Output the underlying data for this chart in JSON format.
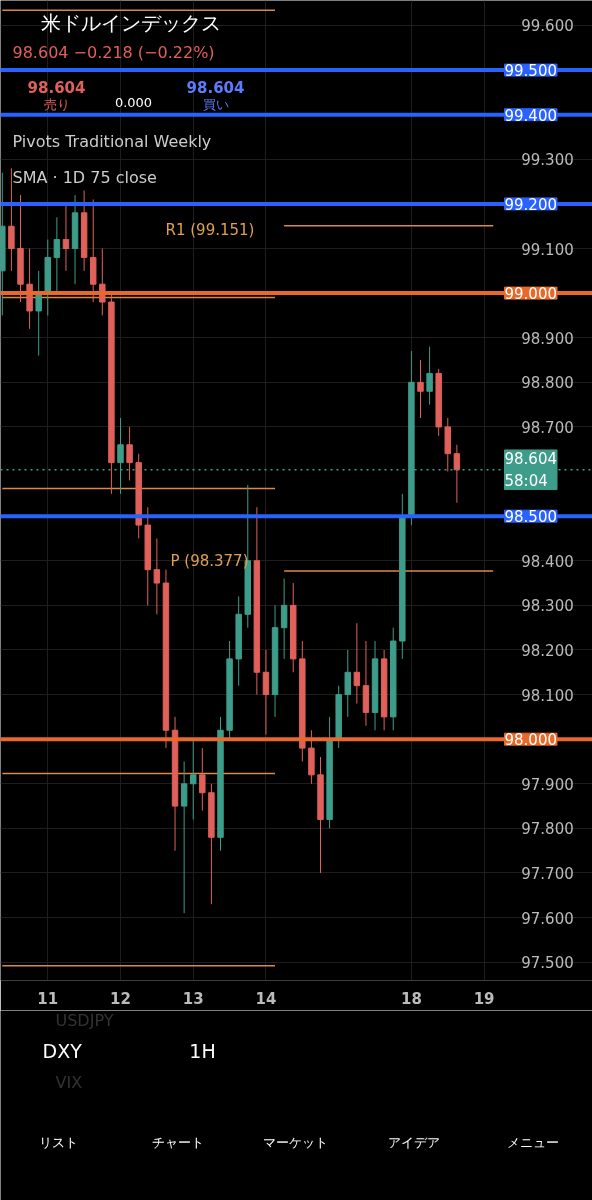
{
  "chart_data": {
    "type": "candlestick",
    "title": "米ドルインデックス",
    "subtitle": "98.604 −0.218 (−0.22%)",
    "categories": [
      null,
      null,
      null,
      null,
      null,
      "11",
      null,
      null,
      null,
      null,
      null,
      null,
      null,
      "12",
      null,
      null,
      null,
      null,
      null,
      null,
      null,
      "13",
      null,
      null,
      null,
      null,
      null,
      null,
      null,
      "14",
      null,
      null,
      null,
      null,
      null,
      null,
      null,
      null,
      null,
      null,
      null,
      null,
      null,
      null,
      null,
      "18",
      null,
      null,
      null,
      null,
      null,
      null,
      null,
      "19",
      null
    ],
    "ohlc": [
      [
        99.05,
        99.27,
        98.95,
        99.15
      ],
      [
        99.15,
        99.28,
        99.05,
        99.1
      ],
      [
        99.1,
        99.22,
        98.98,
        99.02
      ],
      [
        99.02,
        99.1,
        98.92,
        98.96
      ],
      [
        98.96,
        99.05,
        98.86,
        99.0
      ],
      [
        99.0,
        99.12,
        98.95,
        99.08
      ],
      [
        99.08,
        99.17,
        99.0,
        99.12
      ],
      [
        99.12,
        99.2,
        99.05,
        99.1
      ],
      [
        99.1,
        99.22,
        99.02,
        99.18
      ],
      [
        99.18,
        99.23,
        99.05,
        99.08
      ],
      [
        99.08,
        99.21,
        98.98,
        99.02
      ],
      [
        99.02,
        99.1,
        98.95,
        98.98
      ],
      [
        98.98,
        99.0,
        98.55,
        98.62
      ],
      [
        98.62,
        98.72,
        98.55,
        98.66
      ],
      [
        98.66,
        98.7,
        98.58,
        98.62
      ],
      [
        98.62,
        98.64,
        98.45,
        98.48
      ],
      [
        98.48,
        98.52,
        98.3,
        98.38
      ],
      [
        98.38,
        98.45,
        98.28,
        98.35
      ],
      [
        98.35,
        98.38,
        97.98,
        98.02
      ],
      [
        98.02,
        98.05,
        97.75,
        97.85
      ],
      [
        97.85,
        97.95,
        97.61,
        97.9
      ],
      [
        97.9,
        98.0,
        97.82,
        97.92
      ],
      [
        97.92,
        97.98,
        97.84,
        97.88
      ],
      [
        97.88,
        97.9,
        97.63,
        97.78
      ],
      [
        97.78,
        98.05,
        97.75,
        98.02
      ],
      [
        98.02,
        98.22,
        98.0,
        98.18
      ],
      [
        98.18,
        98.32,
        98.12,
        98.28
      ],
      [
        98.28,
        98.57,
        98.25,
        98.4
      ],
      [
        98.4,
        98.52,
        98.1,
        98.15
      ],
      [
        98.15,
        98.2,
        98.01,
        98.1
      ],
      [
        98.1,
        98.3,
        98.05,
        98.25
      ],
      [
        98.25,
        98.36,
        98.18,
        98.3
      ],
      [
        98.3,
        98.35,
        98.15,
        98.18
      ],
      [
        98.18,
        98.22,
        97.95,
        97.98
      ],
      [
        97.98,
        98.02,
        97.9,
        97.92
      ],
      [
        97.92,
        97.96,
        97.7,
        97.82
      ],
      [
        97.82,
        98.05,
        97.8,
        98.0
      ],
      [
        98.0,
        98.12,
        97.98,
        98.1
      ],
      [
        98.1,
        98.2,
        98.05,
        98.15
      ],
      [
        98.15,
        98.26,
        98.08,
        98.12
      ],
      [
        98.12,
        98.22,
        98.03,
        98.06
      ],
      [
        98.06,
        98.22,
        98.02,
        98.18
      ],
      [
        98.18,
        98.2,
        98.02,
        98.05
      ],
      [
        98.05,
        98.25,
        98.02,
        98.22
      ],
      [
        98.22,
        98.55,
        98.18,
        98.5
      ],
      [
        98.5,
        98.87,
        98.48,
        98.8
      ],
      [
        98.8,
        98.85,
        98.72,
        98.78
      ],
      [
        98.78,
        98.88,
        98.75,
        98.82
      ],
      [
        98.82,
        98.83,
        98.68,
        98.7
      ],
      [
        98.7,
        98.72,
        98.6,
        98.64
      ],
      [
        98.64,
        98.66,
        98.53,
        98.604
      ],
      null,
      null,
      null,
      null
    ],
    "series": [
      {
        "type": "line",
        "color": "#d9894a",
        "values": [
          99.634,
          99.634,
          99.634,
          99.634,
          99.634,
          99.634,
          99.634,
          99.634,
          99.634,
          99.634,
          99.634,
          99.634,
          99.634,
          99.634,
          99.634,
          99.634,
          99.634,
          99.634,
          99.634,
          99.634,
          99.634,
          99.634,
          99.634,
          99.634,
          99.634,
          99.634,
          99.634,
          99.634,
          99.634,
          99.634,
          99.634,
          null,
          null,
          null,
          null,
          null,
          null,
          null,
          null,
          null,
          null,
          null,
          null,
          null,
          null,
          null,
          null,
          null,
          null,
          null,
          null,
          null,
          null,
          null,
          null
        ]
      },
      {
        "type": "line",
        "color": "#d9894a",
        "values": [
          98.99,
          98.99,
          98.99,
          98.99,
          98.99,
          98.99,
          98.99,
          98.99,
          98.99,
          98.99,
          98.99,
          98.99,
          98.99,
          98.99,
          98.99,
          98.99,
          98.99,
          98.99,
          98.99,
          98.99,
          98.99,
          98.99,
          98.99,
          98.99,
          98.99,
          98.99,
          98.99,
          98.99,
          98.99,
          98.99,
          98.99,
          null,
          null,
          null,
          null,
          null,
          null,
          null,
          null,
          null,
          null,
          null,
          null,
          null,
          null,
          null,
          null,
          null,
          null,
          null,
          null,
          null,
          null,
          null,
          null
        ]
      },
      {
        "type": "line",
        "color": "#d9894a",
        "values": [
          98.562,
          98.562,
          98.562,
          98.562,
          98.562,
          98.562,
          98.562,
          98.562,
          98.562,
          98.562,
          98.562,
          98.562,
          98.562,
          98.562,
          98.562,
          98.562,
          98.562,
          98.562,
          98.562,
          98.562,
          98.562,
          98.562,
          98.562,
          98.562,
          98.562,
          98.562,
          98.562,
          98.562,
          98.562,
          98.562,
          98.562,
          null,
          null,
          null,
          null,
          null,
          null,
          null,
          null,
          null,
          null,
          null,
          null,
          null,
          null,
          null,
          null,
          null,
          null,
          null,
          null,
          null,
          null,
          null,
          null
        ]
      },
      {
        "type": "line",
        "color": "#d9894a",
        "values": [
          97.923,
          97.923,
          97.923,
          97.923,
          97.923,
          97.923,
          97.923,
          97.923,
          97.923,
          97.923,
          97.923,
          97.923,
          97.923,
          97.923,
          97.923,
          97.923,
          97.923,
          97.923,
          97.923,
          97.923,
          97.923,
          97.923,
          97.923,
          97.923,
          97.923,
          97.923,
          97.923,
          97.923,
          97.923,
          97.923,
          97.923,
          null,
          null,
          null,
          null,
          null,
          null,
          null,
          null,
          null,
          null,
          null,
          null,
          null,
          null,
          null,
          null,
          null,
          null,
          null,
          null,
          null,
          null,
          null,
          null
        ]
      },
      {
        "type": "line",
        "color": "#d9894a",
        "values": [
          97.492,
          97.492,
          97.492,
          97.492,
          97.492,
          97.492,
          97.492,
          97.492,
          97.492,
          97.492,
          97.492,
          97.492,
          97.492,
          97.492,
          97.492,
          97.492,
          97.492,
          97.492,
          97.492,
          97.492,
          97.492,
          97.492,
          97.492,
          97.492,
          97.492,
          97.492,
          97.492,
          97.492,
          97.492,
          97.492,
          97.492,
          null,
          null,
          null,
          null,
          null,
          null,
          null,
          null,
          null,
          null,
          null,
          null,
          null,
          null,
          null,
          null,
          null,
          null,
          null,
          null,
          null,
          null,
          null,
          null
        ]
      },
      {
        "type": "line",
        "color": "#d9894a",
        "values": [
          null,
          null,
          null,
          null,
          null,
          null,
          null,
          null,
          null,
          null,
          null,
          null,
          null,
          null,
          null,
          null,
          null,
          null,
          null,
          null,
          null,
          null,
          null,
          null,
          null,
          null,
          null,
          null,
          null,
          null,
          null,
          99.151,
          99.151,
          99.151,
          99.151,
          99.151,
          99.151,
          99.151,
          99.151,
          99.151,
          99.151,
          99.151,
          99.151,
          99.151,
          99.151,
          99.151,
          99.151,
          99.151,
          99.151,
          99.151,
          99.151,
          99.151,
          99.151,
          99.151,
          99.151
        ]
      },
      {
        "type": "line",
        "color": "#d9894a",
        "values": [
          null,
          null,
          null,
          null,
          null,
          null,
          null,
          null,
          null,
          null,
          null,
          null,
          null,
          null,
          null,
          null,
          null,
          null,
          null,
          null,
          null,
          null,
          null,
          null,
          null,
          null,
          null,
          null,
          null,
          null,
          null,
          98.377,
          98.377,
          98.377,
          98.377,
          98.377,
          98.377,
          98.377,
          98.377,
          98.377,
          98.377,
          98.377,
          98.377,
          98.377,
          98.377,
          98.377,
          98.377,
          98.377,
          98.377,
          98.377,
          98.377,
          98.377,
          98.377,
          98.377,
          98.377
        ]
      }
    ],
    "ylim": [
      97.459,
      99.656
    ],
    "yticks": [
      {
        "value": 99.6,
        "label": "99.600"
      },
      {
        "value": 99.3,
        "label": "99.300"
      },
      {
        "value": 99.1,
        "label": "99.100"
      },
      {
        "value": 98.9,
        "label": "98.900"
      },
      {
        "value": 98.8,
        "label": "98.800"
      },
      {
        "value": 98.7,
        "label": "98.700"
      },
      {
        "value": 98.4,
        "label": "98.400"
      },
      {
        "value": 98.3,
        "label": "98.300"
      },
      {
        "value": 98.2,
        "label": "98.200"
      },
      {
        "value": 98.1,
        "label": "98.100"
      },
      {
        "value": 97.9,
        "label": "97.900"
      },
      {
        "value": 97.8,
        "label": "97.800"
      },
      {
        "value": 97.7,
        "label": "97.700"
      },
      {
        "value": 97.6,
        "label": "97.600"
      },
      {
        "value": 97.5,
        "label": "97.500"
      }
    ],
    "grid": true,
    "ref_lines": [
      {
        "axis": "y",
        "value": 99.5,
        "label": "99.500",
        "color": "#2962ff"
      },
      {
        "axis": "y",
        "value": 99.4,
        "label": "99.400",
        "color": "#2962ff"
      },
      {
        "axis": "y",
        "value": 99.2,
        "label": "99.200",
        "color": "#2962ff"
      },
      {
        "axis": "y",
        "value": 99.0,
        "label": "99.000",
        "color": "#e8692a"
      },
      {
        "axis": "y",
        "value": 98.5,
        "label": "98.500",
        "color": "#2962ff"
      },
      {
        "axis": "y",
        "value": 98.0,
        "label": "98.000",
        "color": "#e8692a"
      },
      {
        "axis": "y",
        "value": 98.604,
        "label": "98.604\n58:04",
        "color": "#3e9d8a",
        "line_style": "dotted"
      }
    ],
    "annotations": [
      "R1 (99.151)",
      "P (98.377)",
      "98.604",
      "売り",
      "0.000",
      "98.604",
      "買い",
      "Pivots Traditional Weekly",
      "SMA · 1D 75 close",
      "USDJPY",
      "DXY",
      "1H",
      "VIX",
      "リスト",
      "チャート",
      "マーケット",
      "アイデア",
      "メニュー"
    ]
  }
}
